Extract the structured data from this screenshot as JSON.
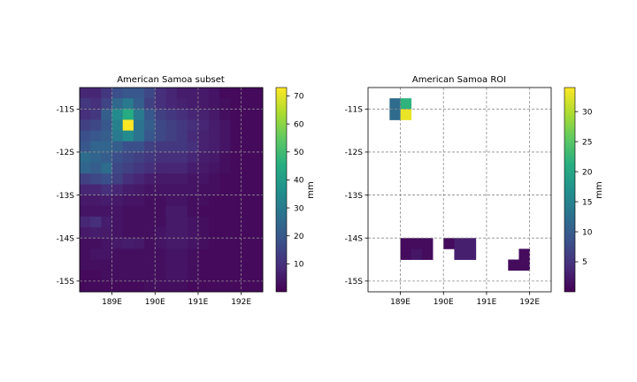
{
  "chart_data": [
    {
      "type": "heatmap",
      "title": "American Samoa subset",
      "colorbar_label": "mm",
      "colormap": "viridis",
      "x_ticks": [
        {
          "value": 189,
          "label": "189E"
        },
        {
          "value": 190,
          "label": "190E"
        },
        {
          "value": 191,
          "label": "191E"
        },
        {
          "value": 192,
          "label": "192E"
        }
      ],
      "y_ticks": [
        {
          "value": -11,
          "label": "-11S"
        },
        {
          "value": -12,
          "label": "-12S"
        },
        {
          "value": -13,
          "label": "-13S"
        },
        {
          "value": -14,
          "label": "-14S"
        },
        {
          "value": -15,
          "label": "-15S"
        }
      ],
      "xlim": [
        188.25,
        192.5
      ],
      "ylim": [
        -15.25,
        -10.5
      ],
      "cell_size": 0.25,
      "x_start": 188.25,
      "y_start": -10.5,
      "vmin": 0,
      "vmax": 73,
      "cbar_ticks": [
        10,
        20,
        30,
        40,
        50,
        60,
        70
      ],
      "grid": true,
      "values": [
        [
          8,
          8,
          12,
          18,
          20,
          20,
          16,
          10,
          8,
          6,
          6,
          5,
          4,
          2,
          2,
          2,
          2
        ],
        [
          12,
          10,
          15,
          25,
          30,
          22,
          14,
          10,
          8,
          7,
          6,
          5,
          4,
          3,
          2,
          2,
          2
        ],
        [
          10,
          12,
          22,
          35,
          45,
          30,
          20,
          14,
          12,
          10,
          8,
          7,
          5,
          3,
          2,
          2,
          2
        ],
        [
          14,
          16,
          20,
          32,
          73,
          28,
          22,
          16,
          14,
          12,
          10,
          8,
          6,
          4,
          2,
          2,
          2
        ],
        [
          18,
          20,
          22,
          30,
          35,
          28,
          20,
          16,
          14,
          12,
          9,
          7,
          6,
          4,
          2,
          2,
          2
        ],
        [
          20,
          24,
          24,
          22,
          18,
          18,
          14,
          12,
          12,
          12,
          10,
          7,
          6,
          4,
          2,
          2,
          2
        ],
        [
          26,
          24,
          22,
          18,
          16,
          14,
          12,
          10,
          10,
          10,
          8,
          6,
          5,
          3,
          2,
          2,
          2
        ],
        [
          24,
          22,
          26,
          16,
          14,
          12,
          10,
          8,
          8,
          8,
          6,
          5,
          4,
          3,
          2,
          2,
          2
        ],
        [
          14,
          16,
          18,
          14,
          10,
          8,
          6,
          5,
          5,
          5,
          4,
          4,
          3,
          2,
          2,
          2,
          2
        ],
        [
          8,
          8,
          10,
          8,
          6,
          5,
          4,
          4,
          4,
          4,
          4,
          3,
          3,
          2,
          2,
          2,
          2
        ],
        [
          5,
          5,
          6,
          5,
          4,
          4,
          3,
          3,
          4,
          4,
          3,
          3,
          2,
          2,
          2,
          2,
          2
        ],
        [
          4,
          4,
          4,
          4,
          3,
          3,
          3,
          3,
          5,
          5,
          3,
          2,
          2,
          2,
          2,
          2,
          2
        ],
        [
          8,
          10,
          6,
          4,
          3,
          3,
          3,
          3,
          5,
          5,
          4,
          3,
          2,
          2,
          2,
          2,
          2
        ],
        [
          5,
          6,
          5,
          4,
          3,
          3,
          3,
          4,
          5,
          5,
          4,
          3,
          2,
          2,
          2,
          2,
          2
        ],
        [
          3,
          3,
          4,
          5,
          6,
          5,
          3,
          4,
          5,
          5,
          4,
          3,
          2,
          2,
          2,
          2,
          2
        ],
        [
          3,
          4,
          4,
          3,
          3,
          3,
          3,
          3,
          4,
          4,
          3,
          2,
          2,
          2,
          2,
          2,
          2
        ],
        [
          3,
          3,
          3,
          3,
          3,
          3,
          3,
          3,
          4,
          4,
          3,
          2,
          2,
          2,
          2,
          2,
          2
        ],
        [
          2,
          2,
          3,
          3,
          3,
          3,
          3,
          3,
          4,
          4,
          3,
          2,
          2,
          2,
          2,
          2,
          2
        ],
        [
          2,
          2,
          2,
          2,
          2,
          2,
          3,
          3,
          3,
          3,
          2,
          2,
          2,
          2,
          2,
          2,
          2
        ]
      ]
    },
    {
      "type": "heatmap",
      "title": "American Samoa ROI",
      "colorbar_label": "mm",
      "colormap": "viridis",
      "x_ticks": [
        {
          "value": 189,
          "label": "189E"
        },
        {
          "value": 190,
          "label": "190E"
        },
        {
          "value": 191,
          "label": "191E"
        },
        {
          "value": 192,
          "label": "192E"
        }
      ],
      "y_ticks": [
        {
          "value": -11,
          "label": "-11S"
        },
        {
          "value": -12,
          "label": "-12S"
        },
        {
          "value": -13,
          "label": "-13S"
        },
        {
          "value": -14,
          "label": "-14S"
        },
        {
          "value": -15,
          "label": "-15S"
        }
      ],
      "xlim": [
        188.25,
        192.5
      ],
      "ylim": [
        -15.25,
        -10.5
      ],
      "vmin": 0,
      "vmax": 34,
      "cbar_ticks": [
        5,
        10,
        15,
        20,
        25,
        30
      ],
      "grid": true,
      "cells": [
        {
          "x": 188.75,
          "y": -10.75,
          "value": 12
        },
        {
          "x": 189.0,
          "y": -10.75,
          "value": 22
        },
        {
          "x": 188.75,
          "y": -11.0,
          "value": 12
        },
        {
          "x": 189.0,
          "y": -11.0,
          "value": 33
        },
        {
          "x": 189.0,
          "y": -14.0,
          "value": 1
        },
        {
          "x": 189.25,
          "y": -14.0,
          "value": 1
        },
        {
          "x": 189.5,
          "y": -14.0,
          "value": 1
        },
        {
          "x": 189.0,
          "y": -14.25,
          "value": 1
        },
        {
          "x": 189.25,
          "y": -14.25,
          "value": 2
        },
        {
          "x": 189.5,
          "y": -14.25,
          "value": 1
        },
        {
          "x": 190.0,
          "y": -14.0,
          "value": 1
        },
        {
          "x": 190.25,
          "y": -14.0,
          "value": 3
        },
        {
          "x": 190.5,
          "y": -14.0,
          "value": 3
        },
        {
          "x": 190.25,
          "y": -14.25,
          "value": 3
        },
        {
          "x": 190.5,
          "y": -14.25,
          "value": 3
        },
        {
          "x": 191.75,
          "y": -14.25,
          "value": 1
        },
        {
          "x": 191.5,
          "y": -14.5,
          "value": 1
        },
        {
          "x": 191.75,
          "y": -14.5,
          "value": 1
        }
      ]
    }
  ]
}
